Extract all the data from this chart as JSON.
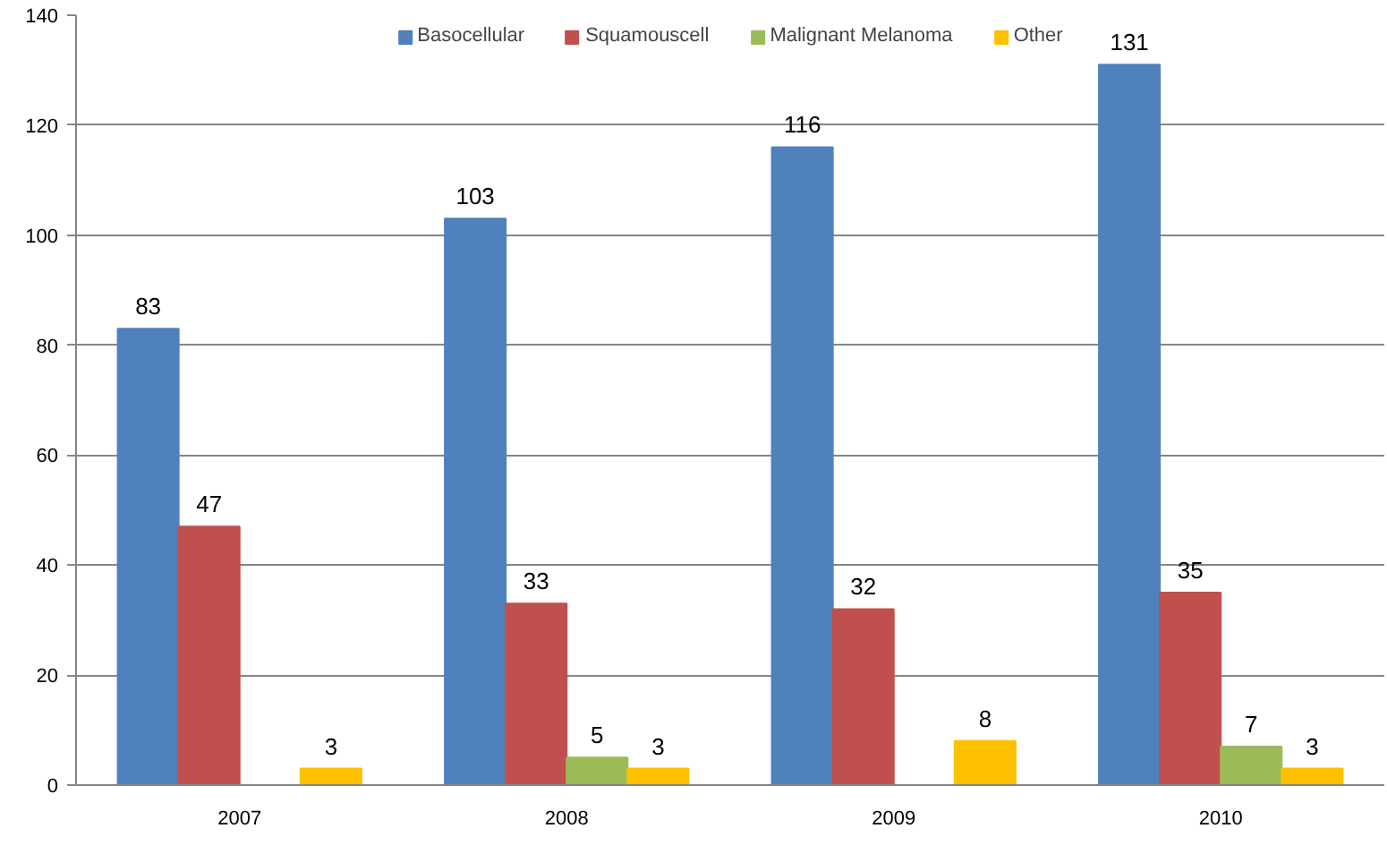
{
  "chart_data": {
    "type": "bar",
    "categories": [
      "2007",
      "2008",
      "2009",
      "2010"
    ],
    "series": [
      {
        "name": "Basocellular",
        "color": "#4f81bd",
        "values": [
          83,
          103,
          116,
          131
        ]
      },
      {
        "name": "Squamouscell",
        "color": "#c0504d",
        "values": [
          47,
          33,
          32,
          35
        ]
      },
      {
        "name": "Malignant Melanoma",
        "color": "#9bbb59",
        "values": [
          null,
          5,
          null,
          7
        ]
      },
      {
        "name": "Other",
        "color": "#ffc000",
        "values": [
          3,
          3,
          8,
          3
        ]
      }
    ],
    "ylim": [
      0,
      140
    ],
    "yticks": [
      0,
      20,
      40,
      60,
      80,
      100,
      120,
      140
    ],
    "grid": "y",
    "legend": "top",
    "data_labels": true
  }
}
